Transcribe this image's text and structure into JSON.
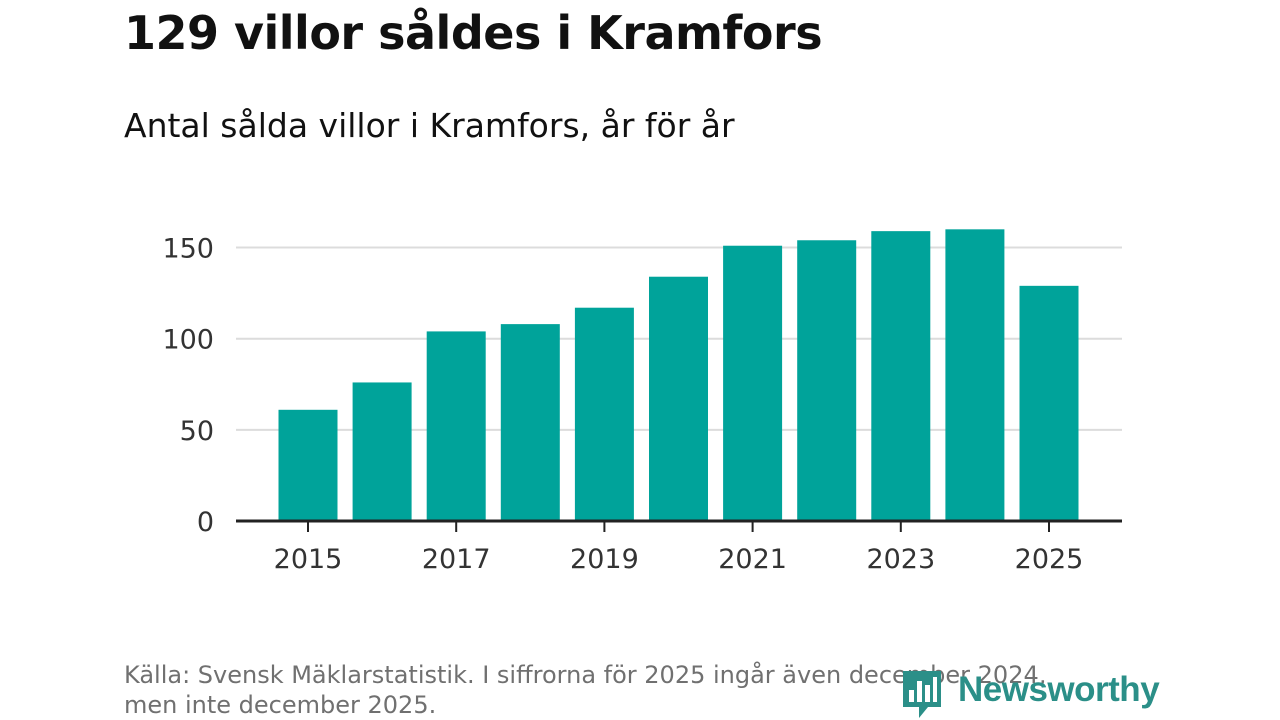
{
  "header": {
    "title": "129 villor såldes i Kramfors",
    "subtitle": "Antal sålda villor i Kramfors, år för år"
  },
  "chart_data": {
    "type": "bar",
    "title": "129 villor såldes i Kramfors",
    "subtitle": "Antal sålda villor i Kramfors, år för år",
    "categories": [
      "2015",
      "2016",
      "2017",
      "2018",
      "2019",
      "2020",
      "2021",
      "2022",
      "2023",
      "2024",
      "2025"
    ],
    "values": [
      61,
      76,
      104,
      108,
      117,
      134,
      151,
      154,
      159,
      160,
      129
    ],
    "x_tick_labels": [
      "2015",
      "2017",
      "2019",
      "2021",
      "2023",
      "2025"
    ],
    "y_ticks": [
      0,
      50,
      100,
      150
    ],
    "ylim": [
      0,
      165
    ],
    "xlabel": "",
    "ylabel": "",
    "grid": true,
    "bar_color": "#00a39a"
  },
  "footer": {
    "source_line1": "Källa: Svensk Mäklarstatistik. I siffrorna för 2025 ingår även december 2024,",
    "source_line2": "men inte december 2025."
  },
  "brand": {
    "name": "Newsworthy",
    "color": "#2b8f88",
    "icon": "newsworthy-logo-icon"
  }
}
